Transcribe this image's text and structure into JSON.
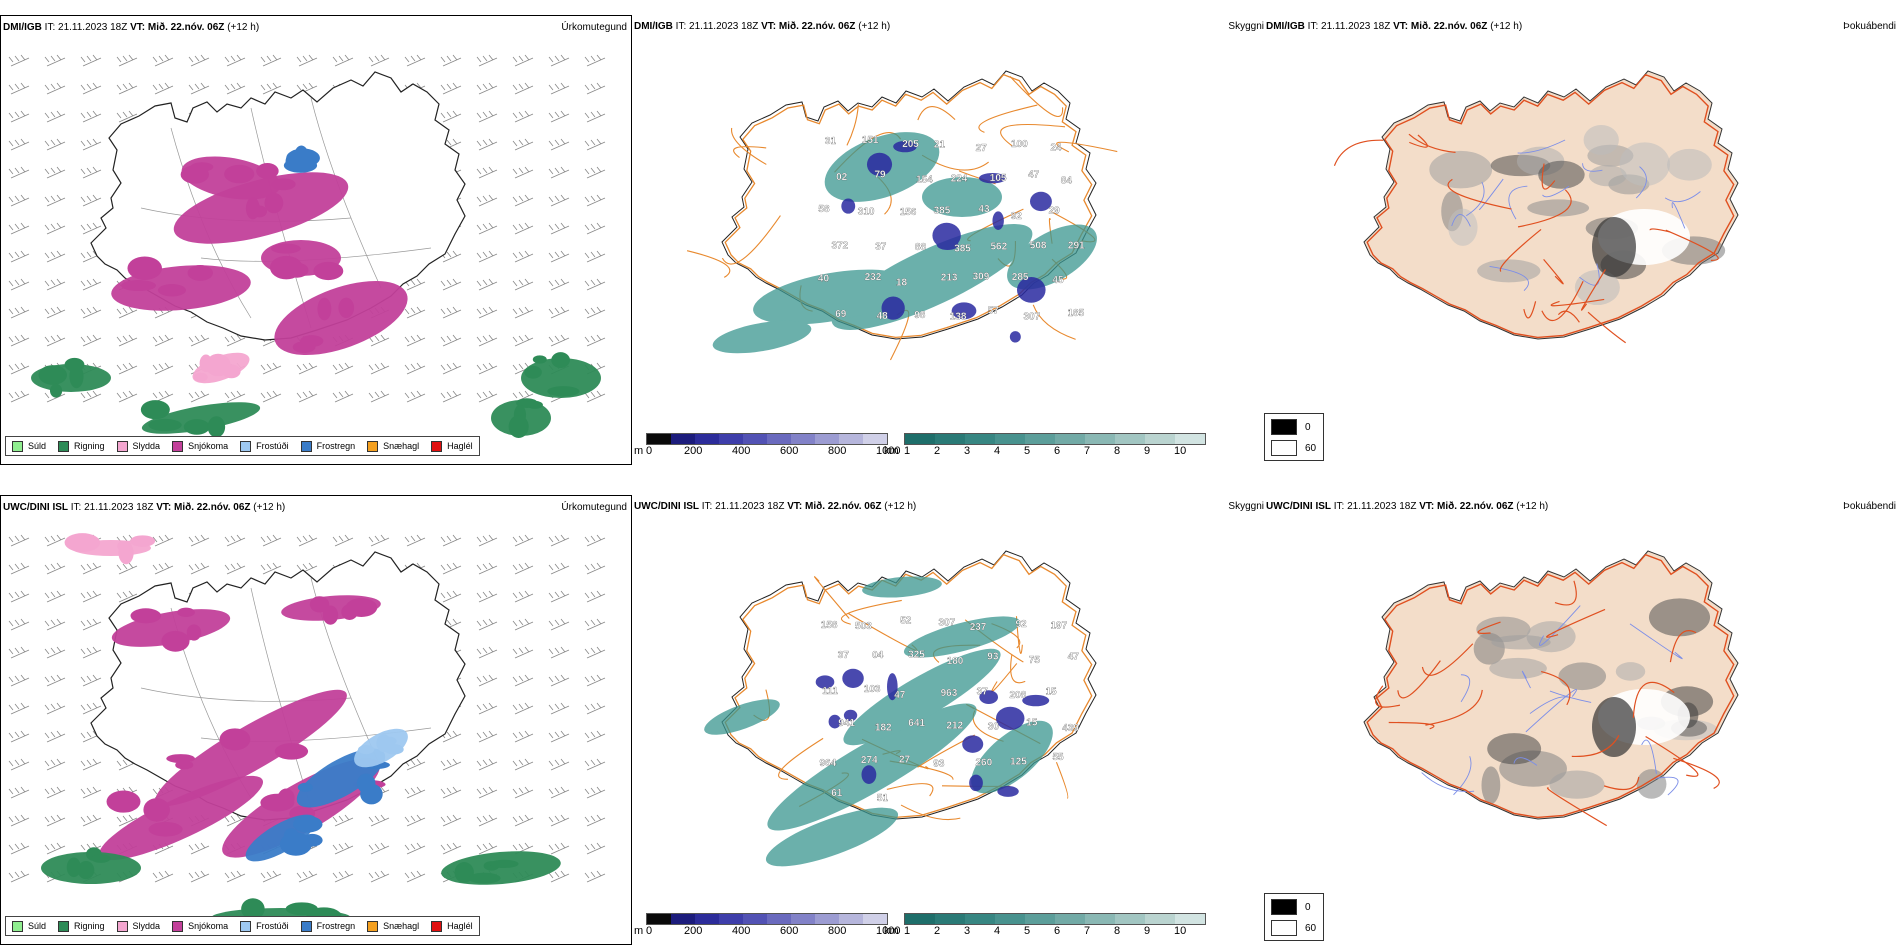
{
  "timing": {
    "it_label": "IT:",
    "it_value": "21.11.2023 18Z",
    "vt_label": "VT: Mið. 22.nóv. 06Z",
    "lead": "(+12 h)"
  },
  "models": {
    "top": "DMI/IGB",
    "bottom": "UWC/DINI ISL"
  },
  "panel_titles": {
    "precip_type": "Úrkomutegund",
    "visibility": "Skyggni",
    "fog": "Þokuábendi"
  },
  "precip_legend": [
    {
      "label": "Súld",
      "color": "#90ee90"
    },
    {
      "label": "Rigning",
      "color": "#2e8b57"
    },
    {
      "label": "Slydda",
      "color": "#f4a6d0"
    },
    {
      "label": "Snjókoma",
      "color": "#c2409a"
    },
    {
      "label": "Frostúði",
      "color": "#9ec8f0"
    },
    {
      "label": "Frostregn",
      "color": "#3a7cc8"
    },
    {
      "label": "Snæhagl",
      "color": "#f4a020"
    },
    {
      "label": "Haglél",
      "color": "#e01010"
    }
  ],
  "visibility_scale": {
    "m_unit": "m",
    "m_ticks": [
      "0",
      "200",
      "400",
      "600",
      "800",
      "1000"
    ],
    "m_colors": [
      "#0a0a0a",
      "#1c1c7c",
      "#2c2c9a",
      "#3e3eaa",
      "#5252b4",
      "#6a6abe",
      "#8282c8",
      "#9c9cd2",
      "#b6b6dc",
      "#d0d0e8"
    ],
    "km_unit": "km",
    "km_ticks": [
      "1",
      "2",
      "3",
      "4",
      "5",
      "6",
      "7",
      "8",
      "9",
      "10"
    ],
    "km_colors": [
      "#1e6e6a",
      "#2a7a76",
      "#378682",
      "#48928e",
      "#5c9e9a",
      "#72aaa6",
      "#8ab8b4",
      "#a2c6c2",
      "#bad4d0",
      "#d2e4e2"
    ]
  },
  "cloud_key": {
    "items": [
      {
        "label": "0",
        "color": "#000000"
      },
      {
        "label": "60",
        "color": "#ffffff"
      }
    ]
  },
  "visibility_labels": {
    "top": [
      "31",
      "151",
      "205",
      "21",
      "27",
      "100",
      "24",
      "02",
      "79",
      "154",
      "224",
      "105",
      "47",
      "84",
      "58",
      "310",
      "156",
      "385",
      "43",
      "92",
      "29",
      "372",
      "37",
      "88",
      "385",
      "562",
      "508",
      "291",
      "40",
      "232",
      "18",
      "213",
      "309",
      "285",
      "45",
      "69",
      "48",
      "98",
      "138",
      "57",
      "307",
      "185"
    ],
    "bottom": [
      "158",
      "503",
      "52",
      "307",
      "237",
      "92",
      "197",
      "37",
      "04",
      "325",
      "180",
      "93",
      "75",
      "47",
      "111",
      "103",
      "47",
      "963",
      "37",
      "208",
      "15",
      "941",
      "182",
      "641",
      "212",
      "30",
      "15",
      "439",
      "964",
      "274",
      "27",
      "93",
      "260",
      "125",
      "55",
      "61",
      "51"
    ]
  },
  "colors": {
    "snow": "#c2409a",
    "rain": "#2e8b57",
    "freezing_rain": "#3a7cc8",
    "freezing_drizzle": "#9ec8f0",
    "sleet": "#f4a6d0",
    "road": "#e8892e",
    "fog_land": "#f3ddc9",
    "fog_road": "#e05020",
    "fog_river": "#7c8ee8",
    "vis_teal": "#3a9690",
    "vis_blue": "#2a2aa0"
  }
}
